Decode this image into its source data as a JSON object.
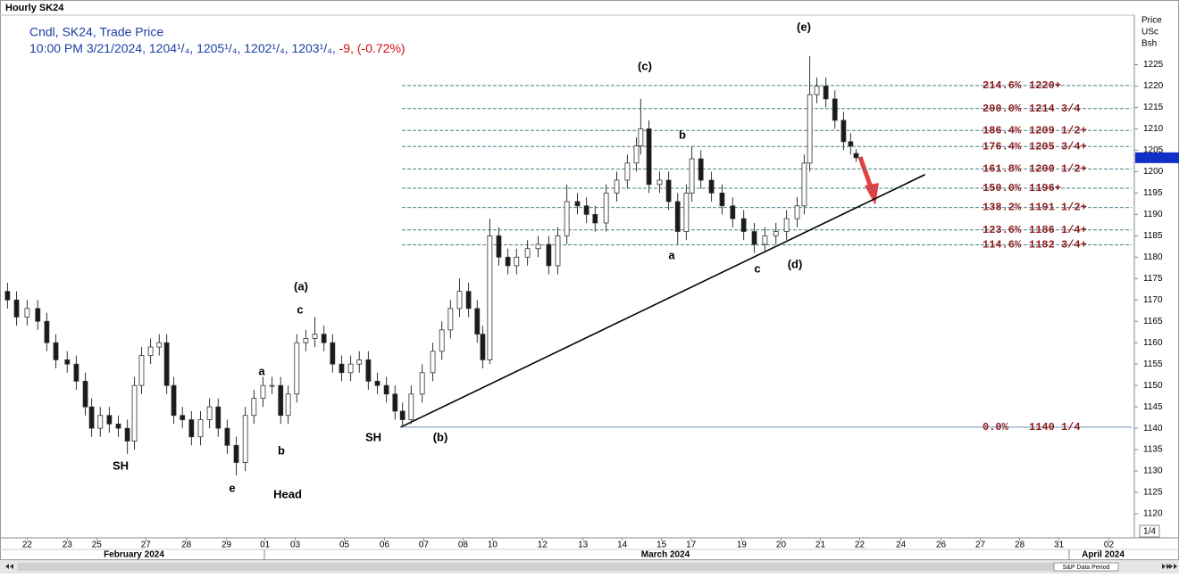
{
  "chart_data": {
    "type": "candlestick",
    "title": "Hourly SK24",
    "legend_line": "Cndl, SK24, Trade Price",
    "info_line": "10:00 PM 3/21/2024, 1204¹/₄, 1205¹/₄, 1202¹/₄, 1203¹/₄,",
    "change_text": "-9, (-0.72%)",
    "y_axis_label": [
      "Price",
      "USc",
      "Bsh"
    ],
    "fraction_box": "1/4",
    "data_period": "S&P Data Period",
    "months": [
      "February 2024",
      "March 2024",
      "April 2024"
    ],
    "xlim": [
      -0.6,
      28.1
    ],
    "xticks": [
      {
        "value": 0,
        "label": "22"
      },
      {
        "value": 1.02,
        "label": "23"
      },
      {
        "value": 1.77,
        "label": "25"
      },
      {
        "value": 3.02,
        "label": "27"
      },
      {
        "value": 4.05,
        "label": "28"
      },
      {
        "value": 5.07,
        "label": "29"
      },
      {
        "value": 6.05,
        "label": "01"
      },
      {
        "value": 6.82,
        "label": "03"
      },
      {
        "value": 8.07,
        "label": "05"
      },
      {
        "value": 9.09,
        "label": "06"
      },
      {
        "value": 10.09,
        "label": "07"
      },
      {
        "value": 11.09,
        "label": "08"
      },
      {
        "value": 11.84,
        "label": "10"
      },
      {
        "value": 13.11,
        "label": "12"
      },
      {
        "value": 14.14,
        "label": "13"
      },
      {
        "value": 15.14,
        "label": "14"
      },
      {
        "value": 16.14,
        "label": "15"
      },
      {
        "value": 16.89,
        "label": "17"
      },
      {
        "value": 18.18,
        "label": "19"
      },
      {
        "value": 19.18,
        "label": "20"
      },
      {
        "value": 20.18,
        "label": "21"
      },
      {
        "value": 21.18,
        "label": "22"
      },
      {
        "value": 22.23,
        "label": "24"
      },
      {
        "value": 23.25,
        "label": "26"
      },
      {
        "value": 24.25,
        "label": "27"
      },
      {
        "value": 25.25,
        "label": "28"
      },
      {
        "value": 26.25,
        "label": "31"
      },
      {
        "value": 27.52,
        "label": "02"
      }
    ],
    "ylim": [
      1115,
      1237
    ],
    "yticks": [
      1120,
      1125,
      1130,
      1135,
      1140,
      1145,
      1150,
      1155,
      1160,
      1165,
      1170,
      1175,
      1180,
      1185,
      1190,
      1195,
      1200,
      1205,
      1210,
      1215,
      1220,
      1225
    ],
    "grid": false,
    "up_color": "#ffffff",
    "down_color": "#1a1a1a",
    "x": [
      -0.5,
      -0.27,
      0,
      0.27,
      0.5,
      0.73,
      1.02,
      1.25,
      1.48,
      1.64,
      1.86,
      2.09,
      2.32,
      2.55,
      2.73,
      2.91,
      3.14,
      3.36,
      3.55,
      3.73,
      3.95,
      4.18,
      4.41,
      4.64,
      4.86,
      5.09,
      5.32,
      5.55,
      5.77,
      6,
      6.23,
      6.45,
      6.64,
      6.86,
      7.09,
      7.32,
      7.55,
      7.77,
      8,
      8.23,
      8.45,
      8.68,
      8.91,
      9.14,
      9.36,
      9.55,
      9.77,
      10.05,
      10.32,
      10.55,
      10.77,
      11,
      11.23,
      11.45,
      11.59,
      11.77,
      12,
      12.23,
      12.45,
      12.73,
      13,
      13.27,
      13.5,
      13.73,
      14,
      14.23,
      14.45,
      14.73,
      15,
      15.27,
      15.5,
      15.61,
      15.82,
      16.09,
      16.32,
      16.55,
      16.77,
      16.91,
      17.14,
      17.41,
      17.68,
      17.95,
      18.23,
      18.5,
      18.77,
      19.05,
      19.32,
      19.59,
      19.77,
      19.91,
      20.09,
      20.32,
      20.55,
      20.77,
      20.95,
      21.09
    ],
    "open": [
      1172,
      1170,
      1166,
      1168,
      1165,
      1160,
      1156,
      1155,
      1151,
      1145,
      1140,
      1143,
      1141,
      1140,
      1137,
      1150,
      1157,
      1159,
      1160,
      1150,
      1143,
      1142,
      1138,
      1142,
      1145,
      1140,
      1136,
      1132,
      1143,
      1147,
      1150,
      1150,
      1143,
      1148,
      1160,
      1161,
      1162,
      1160,
      1155,
      1153,
      1155,
      1156,
      1151,
      1150,
      1148,
      1144,
      1142,
      1148,
      1153,
      1158,
      1163,
      1168,
      1172,
      1168,
      1162,
      1156,
      1185,
      1180,
      1178,
      1180,
      1182,
      1183,
      1178,
      1185,
      1193,
      1192,
      1190,
      1188,
      1195,
      1198,
      1202,
      1206,
      1210,
      1197,
      1198,
      1193,
      1186,
      1195,
      1203,
      1198,
      1195,
      1192,
      1189,
      1186,
      1183,
      1185,
      1186,
      1189,
      1192,
      1202,
      1218,
      1220,
      1217,
      1212,
      1207,
      1204.25
    ],
    "high": [
      1174,
      1172,
      1170,
      1170,
      1167,
      1162,
      1158,
      1157,
      1153,
      1147,
      1145,
      1145,
      1143,
      1142,
      1152,
      1159,
      1161,
      1162,
      1162,
      1152,
      1145,
      1144,
      1144,
      1147,
      1147,
      1142,
      1138,
      1145,
      1149,
      1152,
      1152,
      1152,
      1150,
      1162,
      1163,
      1166,
      1164,
      1162,
      1157,
      1157,
      1158,
      1158,
      1153,
      1152,
      1150,
      1146,
      1150,
      1155,
      1160,
      1165,
      1170,
      1175,
      1174,
      1170,
      1164,
      1189,
      1187,
      1182,
      1182,
      1184,
      1185,
      1185,
      1187,
      1197,
      1195,
      1194,
      1192,
      1197,
      1200,
      1204,
      1208,
      1217,
      1212,
      1200,
      1200,
      1195,
      1197,
      1206,
      1205,
      1200,
      1197,
      1194,
      1191,
      1188,
      1187,
      1188,
      1191,
      1194,
      1204,
      1227,
      1222,
      1222,
      1219,
      1214,
      1209,
      1205.25
    ],
    "low": [
      1168,
      1164,
      1164,
      1163,
      1158,
      1154,
      1153,
      1149,
      1143,
      1138,
      1138,
      1139,
      1138,
      1134,
      1135,
      1148,
      1155,
      1157,
      1148,
      1141,
      1140,
      1136,
      1136,
      1140,
      1138,
      1134,
      1129,
      1130,
      1141,
      1145,
      1148,
      1141,
      1141,
      1146,
      1158,
      1159,
      1158,
      1153,
      1151,
      1151,
      1153,
      1149,
      1148,
      1146,
      1142,
      1140.25,
      1141,
      1146,
      1151,
      1156,
      1161,
      1166,
      1166,
      1160,
      1154,
      1155,
      1178,
      1176,
      1176,
      1178,
      1180,
      1176,
      1176,
      1183,
      1190,
      1188,
      1186,
      1186,
      1193,
      1196,
      1200,
      1204,
      1195,
      1195,
      1191,
      1183,
      1184,
      1193,
      1196,
      1193,
      1190,
      1187,
      1184,
      1181,
      1181,
      1183,
      1184,
      1187,
      1190,
      1200,
      1216,
      1215,
      1210,
      1205,
      1204,
      1202.25
    ],
    "close": [
      1170,
      1166,
      1168,
      1165,
      1160,
      1156,
      1155,
      1151,
      1145,
      1140,
      1143,
      1141,
      1140,
      1137,
      1150,
      1157,
      1159,
      1160,
      1150,
      1143,
      1142,
      1138,
      1142,
      1145,
      1140,
      1136,
      1132,
      1143,
      1147,
      1150,
      1150,
      1143,
      1148,
      1160,
      1161,
      1162,
      1160,
      1155,
      1153,
      1155,
      1156,
      1151,
      1150,
      1148,
      1144,
      1142,
      1148,
      1153,
      1158,
      1163,
      1168,
      1172,
      1168,
      1162,
      1156,
      1185,
      1180,
      1178,
      1180,
      1182,
      1183,
      1178,
      1185,
      1193,
      1192,
      1190,
      1188,
      1195,
      1198,
      1202,
      1206,
      1210,
      1197,
      1198,
      1193,
      1186,
      1195,
      1203,
      1198,
      1195,
      1192,
      1189,
      1186,
      1183,
      1185,
      1186,
      1189,
      1192,
      1202,
      1218,
      1220,
      1217,
      1212,
      1207,
      1206,
      1203.25
    ],
    "fib_levels": [
      {
        "pct": "214.6%",
        "label": "1220+",
        "value": 1220.125
      },
      {
        "pct": "200.0%",
        "label": "1214 3/4",
        "value": 1214.75
      },
      {
        "pct": "186.4%",
        "label": "1209 1/2+",
        "value": 1209.625
      },
      {
        "pct": "176.4%",
        "label": "1205 3/4+",
        "value": 1205.875
      },
      {
        "pct": "161.8%",
        "label": "1200 1/2+",
        "value": 1200.625
      },
      {
        "pct": "150.0%",
        "label": "1196+",
        "value": 1196.125
      },
      {
        "pct": "138.2%",
        "label": "1191 1/2+",
        "value": 1191.625
      },
      {
        "pct": "123.6%",
        "label": "1186 1/4+",
        "value": 1186.375
      },
      {
        "pct": "114.6%",
        "label": "1182 3/4+",
        "value": 1182.875
      },
      {
        "pct": "0.0%",
        "label": "1140 1/4",
        "value": 1140.25
      }
    ],
    "fib_color": "#8b1a1a",
    "trendline": {
      "x": [
        9.5,
        22.84
      ],
      "y": [
        1140.25,
        1199.3
      ]
    },
    "annotations": [
      "(e)",
      "(c)",
      "b",
      "a",
      "c",
      "(d)",
      "(a)",
      "c",
      "a",
      "b",
      "SH",
      "e",
      "Head",
      "SH",
      "(b)"
    ]
  }
}
